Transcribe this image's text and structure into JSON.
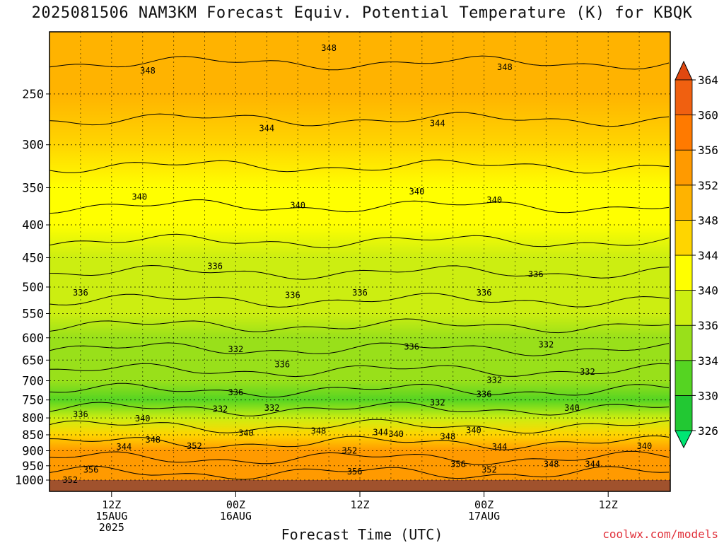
{
  "title": "2025081506 NAM3KM Forecast Equiv. Potential Temperature (K) for KBQK",
  "credit": "coolwx.com/models",
  "chart_data": {
    "type": "heatmap",
    "title": "2025081506 NAM3KM Forecast Equiv. Potential Temperature (K) for KBQK",
    "xlabel": "Forecast Time (UTC)",
    "ylabel": "",
    "x_ticks": [
      {
        "lines": [
          "12Z",
          "15AUG",
          "2025"
        ],
        "hour": 6
      },
      {
        "lines": [
          "00Z",
          "16AUG"
        ],
        "hour": 18
      },
      {
        "lines": [
          "12Z"
        ],
        "hour": 30
      },
      {
        "lines": [
          "00Z",
          "17AUG"
        ],
        "hour": 42
      },
      {
        "lines": [
          "12Z"
        ],
        "hour": 54
      }
    ],
    "xlim_hours": [
      0,
      60
    ],
    "y_ticks": [
      "250",
      "300",
      "350",
      "400",
      "450",
      "500",
      "550",
      "600",
      "650",
      "700",
      "750",
      "800",
      "850",
      "900",
      "950",
      "1000"
    ],
    "ylim": [
      1000,
      200
    ],
    "y_scale": "log",
    "grid": true,
    "colorbar": {
      "levels": [
        326,
        330,
        334,
        336,
        340,
        344,
        348,
        352,
        356,
        360,
        364
      ],
      "labels": [
        "326",
        "330",
        "334",
        "336",
        "340",
        "344",
        "348",
        "352",
        "356",
        "360",
        "364"
      ],
      "colors": [
        "#00e673",
        "#22c833",
        "#55d422",
        "#99e01a",
        "#ccee11",
        "#ffff00",
        "#ffd500",
        "#ffb300",
        "#ff9a00",
        "#ff7a00",
        "#f06010",
        "#e04810"
      ]
    },
    "profile": [
      {
        "p": 1000,
        "theta_e": 354
      },
      {
        "p": 950,
        "theta_e": 355
      },
      {
        "p": 900,
        "theta_e": 352
      },
      {
        "p": 850,
        "theta_e": 346
      },
      {
        "p": 800,
        "theta_e": 336
      },
      {
        "p": 750,
        "theta_e": 333
      },
      {
        "p": 700,
        "theta_e": 334
      },
      {
        "p": 650,
        "theta_e": 334
      },
      {
        "p": 600,
        "theta_e": 335
      },
      {
        "p": 550,
        "theta_e": 336
      },
      {
        "p": 500,
        "theta_e": 337
      },
      {
        "p": 450,
        "theta_e": 338
      },
      {
        "p": 400,
        "theta_e": 340
      },
      {
        "p": 350,
        "theta_e": 342
      },
      {
        "p": 300,
        "theta_e": 345
      },
      {
        "p": 250,
        "theta_e": 348
      },
      {
        "p": 200,
        "theta_e": 350
      }
    ],
    "contour_labels": [
      {
        "text": "348",
        "hour": 27,
        "p": 212
      },
      {
        "text": "348",
        "hour": 9.5,
        "p": 230
      },
      {
        "text": "348",
        "hour": 44,
        "p": 227
      },
      {
        "text": "344",
        "hour": 21,
        "p": 283
      },
      {
        "text": "344",
        "hour": 37.5,
        "p": 278
      },
      {
        "text": "340",
        "hour": 8.7,
        "p": 362
      },
      {
        "text": "340",
        "hour": 24,
        "p": 373
      },
      {
        "text": "340",
        "hour": 35.5,
        "p": 355
      },
      {
        "text": "340",
        "hour": 43,
        "p": 366
      },
      {
        "text": "336",
        "hour": 16,
        "p": 464
      },
      {
        "text": "336",
        "hour": 3,
        "p": 510
      },
      {
        "text": "336",
        "hour": 23.5,
        "p": 515
      },
      {
        "text": "336",
        "hour": 30,
        "p": 510
      },
      {
        "text": "336",
        "hour": 42,
        "p": 510
      },
      {
        "text": "336",
        "hour": 47,
        "p": 478
      },
      {
        "text": "336",
        "hour": 35,
        "p": 620
      },
      {
        "text": "336",
        "hour": 22.5,
        "p": 660
      },
      {
        "text": "336",
        "hour": 18,
        "p": 730
      },
      {
        "text": "336",
        "hour": 42,
        "p": 735
      },
      {
        "text": "336",
        "hour": 3,
        "p": 790
      },
      {
        "text": "332",
        "hour": 18,
        "p": 625
      },
      {
        "text": "332",
        "hour": 48,
        "p": 615
      },
      {
        "text": "332",
        "hour": 43,
        "p": 698
      },
      {
        "text": "332",
        "hour": 52,
        "p": 678
      },
      {
        "text": "332",
        "hour": 16.5,
        "p": 775
      },
      {
        "text": "332",
        "hour": 21.5,
        "p": 772
      },
      {
        "text": "332",
        "hour": 37.5,
        "p": 757
      },
      {
        "text": "340",
        "hour": 9,
        "p": 802
      },
      {
        "text": "340",
        "hour": 19,
        "p": 845
      },
      {
        "text": "340",
        "hour": 33.5,
        "p": 848
      },
      {
        "text": "340",
        "hour": 41,
        "p": 836
      },
      {
        "text": "340",
        "hour": 50.5,
        "p": 772
      },
      {
        "text": "340",
        "hour": 57.5,
        "p": 885
      },
      {
        "text": "344",
        "hour": 32,
        "p": 842
      },
      {
        "text": "344",
        "hour": 7.2,
        "p": 888
      },
      {
        "text": "344",
        "hour": 43.5,
        "p": 887
      },
      {
        "text": "344",
        "hour": 52.5,
        "p": 945
      },
      {
        "text": "348",
        "hour": 26,
        "p": 838
      },
      {
        "text": "348",
        "hour": 10,
        "p": 865
      },
      {
        "text": "348",
        "hour": 38.5,
        "p": 855
      },
      {
        "text": "348",
        "hour": 48.5,
        "p": 945
      },
      {
        "text": "352",
        "hour": 14,
        "p": 885
      },
      {
        "text": "352",
        "hour": 29,
        "p": 900
      },
      {
        "text": "352",
        "hour": 42.5,
        "p": 964
      },
      {
        "text": "352",
        "hour": 2,
        "p": 1000
      },
      {
        "text": "356",
        "hour": 4,
        "p": 964
      },
      {
        "text": "356",
        "hour": 39.5,
        "p": 945
      },
      {
        "text": "356",
        "hour": 29.5,
        "p": 970
      }
    ]
  }
}
